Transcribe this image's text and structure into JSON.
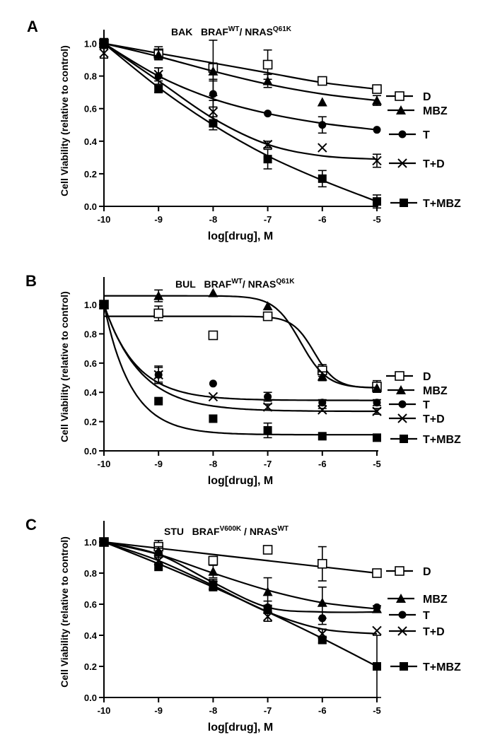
{
  "chart_data": [
    {
      "type": "line",
      "panel": "A",
      "title_cell": "BAK",
      "title_braf_base": "BRAF",
      "title_braf_sup": "WT",
      "title_sep": "/ ",
      "title_nras_base": "NRAS",
      "title_nras_sup": "Q61K",
      "xlabel": "log[drug], M",
      "ylabel": "Cell Viability (relative to control)",
      "xlim": [
        -10,
        -5
      ],
      "ylim": [
        0,
        1.05
      ],
      "xticks": [
        -10,
        -9,
        -8,
        -7,
        -6,
        -5
      ],
      "xtick_labels": [
        "-10",
        "-9",
        "-8",
        "-7",
        "-6",
        "-5"
      ],
      "yticks": [
        0,
        0.2,
        0.4,
        0.6,
        0.8,
        1.0
      ],
      "ytick_labels": [
        "0.0",
        "0.2",
        "0.4",
        "0.6",
        "0.8",
        "1.0"
      ],
      "x": [
        -10,
        -9,
        -8,
        -7,
        -6,
        -5
      ],
      "series": [
        {
          "name": "D",
          "marker": "open-square",
          "values": [
            1.0,
            0.94,
            0.85,
            0.87,
            0.77,
            0.72
          ],
          "errors": [
            0.03,
            0.04,
            0.17,
            0.09,
            0.01,
            0.02
          ],
          "fit": [
            1.0,
            0.94,
            0.88,
            0.82,
            0.76,
            0.72
          ]
        },
        {
          "name": "MBZ",
          "marker": "triangle",
          "values": [
            1.0,
            0.93,
            0.83,
            0.77,
            0.64,
            0.65
          ],
          "errors": [
            0.03,
            0.03,
            0.05,
            0.04,
            0.0,
            0.03
          ],
          "fit": [
            1.0,
            0.92,
            0.83,
            0.75,
            0.69,
            0.65
          ]
        },
        {
          "name": "T",
          "marker": "circle",
          "values": [
            1.0,
            0.8,
            0.69,
            0.57,
            0.5,
            0.47
          ],
          "errors": [
            0.02,
            0.05,
            0.08,
            0.0,
            0.05,
            0.0
          ],
          "fit": [
            1.0,
            0.8,
            0.66,
            0.57,
            0.51,
            0.47
          ]
        },
        {
          "name": "T+D",
          "marker": "x",
          "values": [
            0.94,
            0.81,
            0.58,
            0.38,
            0.36,
            0.28
          ],
          "errors": [
            0.03,
            0.04,
            0.07,
            0.02,
            0.0,
            0.04
          ],
          "fit": [
            1.0,
            0.77,
            0.54,
            0.38,
            0.31,
            0.29
          ]
        },
        {
          "name": "T+MBZ",
          "marker": "filled-square",
          "values": [
            1.0,
            0.72,
            0.51,
            0.29,
            0.17,
            0.03
          ],
          "errors": [
            0.02,
            0.02,
            0.04,
            0.06,
            0.05,
            0.04
          ],
          "fit": [
            1.0,
            0.73,
            0.5,
            0.31,
            0.16,
            0.03
          ]
        }
      ]
    },
    {
      "type": "line",
      "panel": "B",
      "title_cell": "BUL",
      "title_braf_base": "BRAF",
      "title_braf_sup": "WT",
      "title_sep": "/ ",
      "title_nras_base": "NRAS",
      "title_nras_sup": "Q61K",
      "xlabel": "log[drug], M",
      "ylabel": "Cell Viability (relative to control)",
      "xlim": [
        -10,
        -5
      ],
      "ylim": [
        0,
        1.15
      ],
      "xticks": [
        -10,
        -9,
        -8,
        -7,
        -6,
        -5
      ],
      "xtick_labels": [
        "-10",
        "-9",
        "-8",
        "-7",
        "-6",
        "-5"
      ],
      "yticks": [
        0,
        0.2,
        0.4,
        0.6,
        0.8,
        1.0
      ],
      "ytick_labels": [
        "0.0",
        "0.2",
        "0.4",
        "0.6",
        "0.8",
        "1.0"
      ],
      "x": [
        -10,
        -9,
        -8,
        -7,
        -6,
        -5
      ],
      "series": [
        {
          "name": "D",
          "marker": "open-square",
          "values": [
            1.0,
            0.94,
            0.79,
            0.92,
            0.55,
            0.44
          ],
          "errors": [
            0.0,
            0.05,
            0.0,
            0.02,
            0.04,
            0.04
          ],
          "model": "sigmoid",
          "top": 0.92,
          "bottom": 0.43,
          "ec50": -6.15,
          "hill": 2.2
        },
        {
          "name": "MBZ",
          "marker": "triangle",
          "values": [
            1.0,
            1.06,
            1.08,
            0.99,
            0.51,
            0.43
          ],
          "errors": [
            0.0,
            0.04,
            0.0,
            0.0,
            0.03,
            0.0
          ],
          "model": "sigmoid",
          "top": 1.06,
          "bottom": 0.43,
          "ec50": -6.4,
          "hill": 1.8
        },
        {
          "name": "T",
          "marker": "circle",
          "values": [
            1.0,
            0.52,
            0.46,
            0.37,
            0.33,
            0.33
          ],
          "errors": [
            0.0,
            0.06,
            0.0,
            0.03,
            0.02,
            0.02
          ],
          "model": "decay",
          "plateau": 0.345,
          "k": 1.7
        },
        {
          "name": "T+D",
          "marker": "x",
          "values": [
            1.0,
            0.52,
            0.37,
            0.3,
            0.28,
            0.27
          ],
          "errors": [
            0.0,
            0.05,
            0.0,
            0.02,
            0.01,
            0.02
          ],
          "model": "decay",
          "plateau": 0.27,
          "k": 1.5
        },
        {
          "name": "T+MBZ",
          "marker": "filled-square",
          "values": [
            1.0,
            0.34,
            0.22,
            0.14,
            0.1,
            0.09
          ],
          "errors": [
            0.0,
            0.0,
            0.0,
            0.05,
            0.0,
            0.0
          ],
          "model": "decay",
          "plateau": 0.11,
          "k": 2.0
        }
      ]
    },
    {
      "type": "line",
      "panel": "C",
      "title_cell": "STU",
      "title_braf_base": "BRAF",
      "title_braf_sup": "V600K",
      "title_sep": " / ",
      "title_nras_base": "NRAS",
      "title_nras_sup": "WT",
      "xlabel": "log[drug], M",
      "ylabel": "Cell Viability (relative to control)",
      "xlim": [
        -10,
        -5
      ],
      "ylim": [
        0,
        1.1
      ],
      "xticks": [
        -10,
        -9,
        -8,
        -7,
        -6,
        -5
      ],
      "xtick_labels": [
        "-10",
        "-9",
        "-8",
        "-7",
        "-6",
        "-5"
      ],
      "yticks": [
        0,
        0.2,
        0.4,
        0.6,
        0.8,
        1.0
      ],
      "ytick_labels": [
        "0.0",
        "0.2",
        "0.4",
        "0.6",
        "0.8",
        "1.0"
      ],
      "x": [
        -10,
        -9,
        -8,
        -7,
        -6,
        -5
      ],
      "series": [
        {
          "name": "D",
          "marker": "open-square",
          "values": [
            1.0,
            0.97,
            0.88,
            0.95,
            0.86,
            0.8
          ],
          "errors": [
            0.02,
            0.04,
            0.02,
            0.0,
            0.11,
            0.0
          ],
          "fit": [
            1.0,
            0.96,
            0.92,
            0.88,
            0.84,
            0.8
          ]
        },
        {
          "name": "MBZ",
          "marker": "triangle",
          "values": [
            1.0,
            0.94,
            0.81,
            0.68,
            0.61,
            0.57
          ],
          "errors": [
            0.02,
            0.03,
            0.04,
            0.09,
            0.1,
            0.02
          ],
          "fit": [
            1.0,
            0.92,
            0.8,
            0.69,
            0.61,
            0.57
          ]
        },
        {
          "name": "T",
          "marker": "circle",
          "values": [
            1.0,
            0.93,
            0.73,
            0.58,
            0.51,
            0.58
          ],
          "errors": [
            0.02,
            0.03,
            0.03,
            0.04,
            0.04,
            0.0
          ],
          "fit": [
            1.0,
            0.92,
            0.74,
            0.58,
            0.55,
            0.55
          ]
        },
        {
          "name": "T+D",
          "marker": "x",
          "values": [
            1.0,
            0.88,
            0.72,
            0.52,
            0.41,
            0.43
          ],
          "errors": [
            0.02,
            0.03,
            0.03,
            0.03,
            0.03,
            0.0
          ],
          "fit": [
            1.0,
            0.88,
            0.72,
            0.55,
            0.44,
            0.41
          ]
        },
        {
          "name": "T+MBZ",
          "marker": "filled-square",
          "values": [
            1.0,
            0.84,
            0.71,
            0.57,
            0.37,
            0.2
          ],
          "errors": [
            0.02,
            0.0,
            0.0,
            0.02,
            0.02,
            0.2
          ],
          "fit": [
            1.0,
            0.86,
            0.71,
            0.55,
            0.38,
            0.2
          ]
        }
      ]
    }
  ]
}
